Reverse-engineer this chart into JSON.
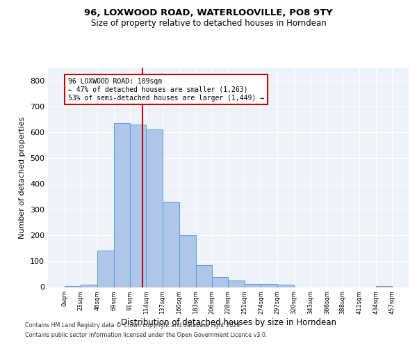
{
  "title1": "96, LOXWOOD ROAD, WATERLOOVILLE, PO8 9TY",
  "title2": "Size of property relative to detached houses in Horndean",
  "xlabel": "Distribution of detached houses by size in Horndean",
  "ylabel": "Number of detached properties",
  "footnote1": "Contains HM Land Registry data © Crown copyright and database right 2024.",
  "footnote2": "Contains public sector information licensed under the Open Government Licence v3.0.",
  "property_size": 109,
  "annotation_line1": "96 LOXWOOD ROAD: 109sqm",
  "annotation_line2": "← 47% of detached houses are smaller (1,263)",
  "annotation_line3": "53% of semi-detached houses are larger (1,449) →",
  "bar_color": "#aec6e8",
  "bar_edge_color": "#5b9bd5",
  "vline_color": "#cc0000",
  "annotation_box_color": "#cc0000",
  "background_color": "#eef2f9",
  "bin_edges": [
    0,
    23,
    46,
    69,
    91,
    114,
    137,
    160,
    183,
    206,
    228,
    251,
    274,
    297,
    320,
    343,
    366,
    388,
    411,
    434,
    457
  ],
  "bar_heights": [
    5,
    10,
    143,
    635,
    630,
    610,
    330,
    200,
    85,
    40,
    25,
    12,
    12,
    10,
    0,
    0,
    0,
    0,
    0,
    5
  ],
  "ylim": [
    0,
    850
  ],
  "yticks": [
    0,
    100,
    200,
    300,
    400,
    500,
    600,
    700,
    800
  ]
}
